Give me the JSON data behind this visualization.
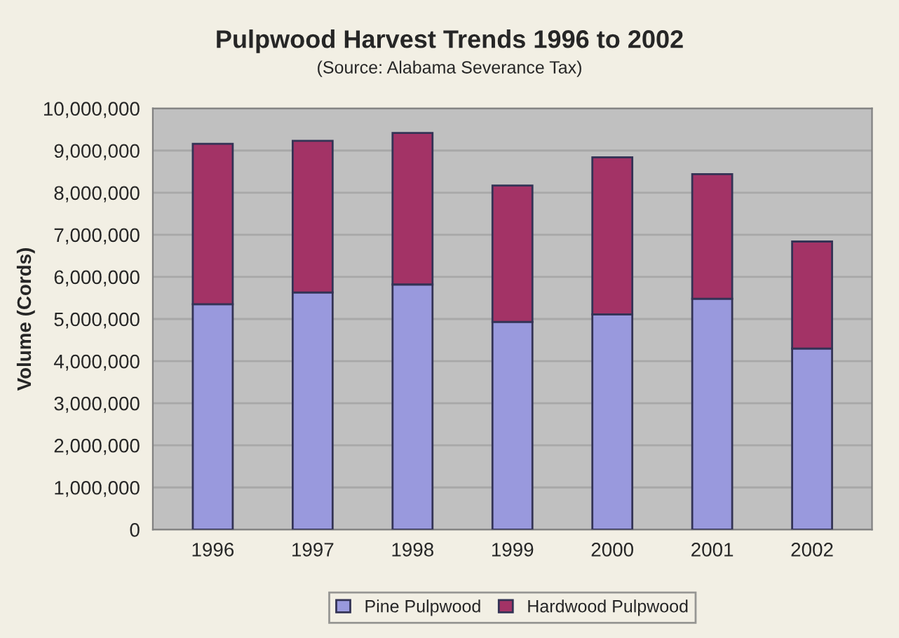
{
  "chart_data": {
    "type": "bar",
    "title": "Pulpwood Harvest Trends 1996 to 2002",
    "subtitle": "(Source: Alabama Severance Tax)",
    "ylabel": "Volume (Cords)",
    "categories": [
      "1996",
      "1997",
      "1998",
      "1999",
      "2000",
      "2001",
      "2002"
    ],
    "series": [
      {
        "name": "Pine Pulpwood",
        "color": "#9999dd",
        "values": [
          5350000,
          5630000,
          5820000,
          4930000,
          5110000,
          5480000,
          4300000
        ]
      },
      {
        "name": "Hardwood Pulpwood",
        "color": "#a33366",
        "values": [
          3810000,
          3600000,
          3600000,
          3240000,
          3730000,
          2960000,
          2540000
        ]
      }
    ],
    "stacked": true,
    "ylim": [
      0,
      10000000
    ],
    "yticks": [
      {
        "value": 0,
        "label": "0"
      },
      {
        "value": 1000000,
        "label": "1,000,000"
      },
      {
        "value": 2000000,
        "label": "2,000,000"
      },
      {
        "value": 3000000,
        "label": "3,000,000"
      },
      {
        "value": 4000000,
        "label": "4,000,000"
      },
      {
        "value": 5000000,
        "label": "5,000,000"
      },
      {
        "value": 6000000,
        "label": "6,000,000"
      },
      {
        "value": 7000000,
        "label": "7,000,000"
      },
      {
        "value": 8000000,
        "label": "8,000,000"
      },
      {
        "value": 9000000,
        "label": "9,000,000"
      },
      {
        "value": 10000000,
        "label": "10,000,000"
      }
    ],
    "grid": "y",
    "legend": "bottom"
  }
}
